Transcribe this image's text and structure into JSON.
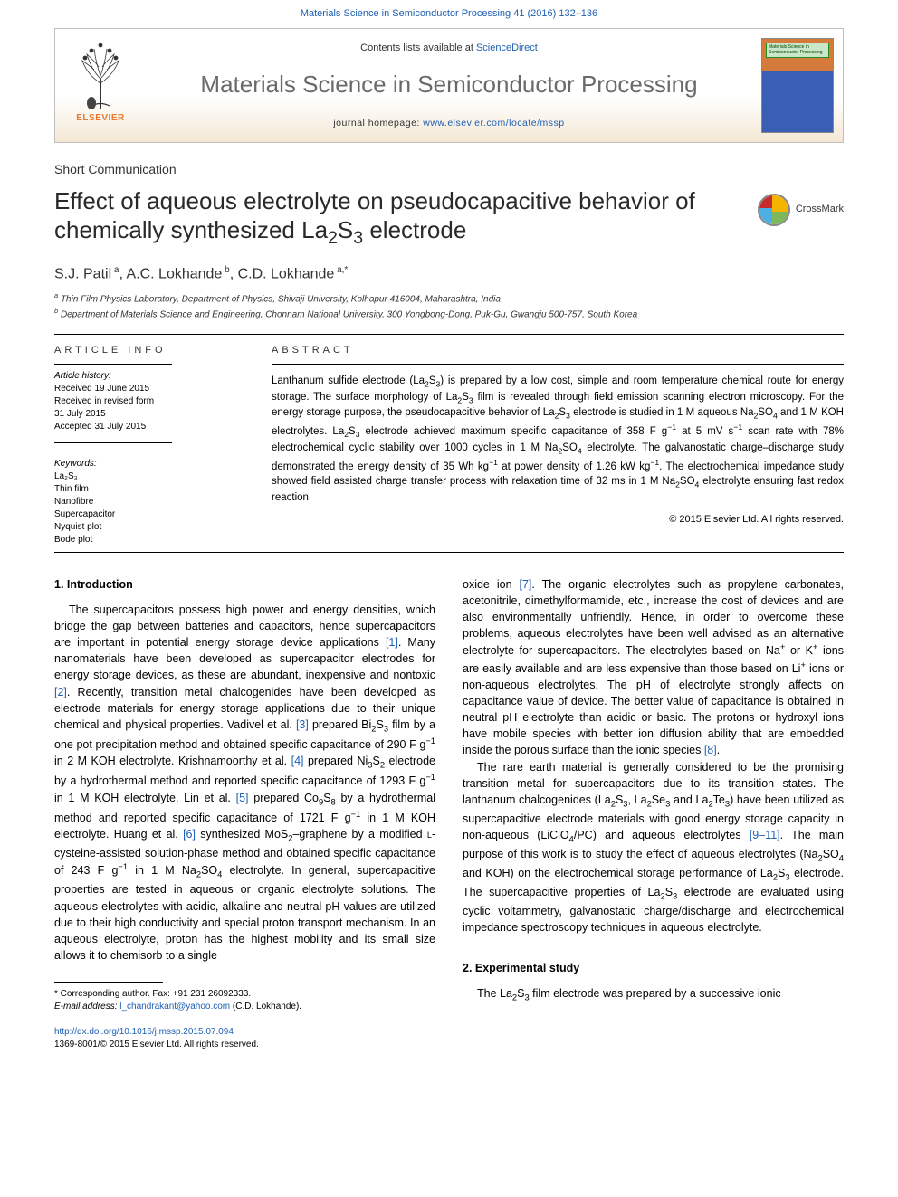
{
  "colors": {
    "link": "#1e5fb3",
    "elsevier_orange": "#e47a2e",
    "journal_gray": "#6a6a6a",
    "text": "#000000",
    "cover_orange": "#d47a3a",
    "cover_blue": "#3a5eb3",
    "cover_title_bg": "#c9e6c9"
  },
  "typography": {
    "body_family": "Arial, sans-serif",
    "title_fontsize": 26,
    "journal_fontsize": 26,
    "body_fontsize": 12.5,
    "abstract_fontsize": 11.5,
    "info_fontsize": 10
  },
  "header": {
    "top_citation": "Materials Science in Semiconductor Processing 41 (2016) 132–136",
    "contents_prefix": "Contents lists available at ",
    "contents_link": "ScienceDirect",
    "journal_name": "Materials Science in Semiconductor Processing",
    "homepage_prefix": "journal homepage: ",
    "homepage_link": "www.elsevier.com/locate/mssp",
    "publisher_logo_text": "ELSEVIER",
    "cover_title": "Materials Science in Semiconductor Processing",
    "crossmark_label": "CrossMark"
  },
  "article": {
    "section_type": "Short Communication",
    "title_html": "Effect of aqueous electrolyte on pseudocapacitive behavior of chemically synthesized La<sub>2</sub>S<sub>3</sub> electrode",
    "authors_html": "S.J. Patil<sup> a</sup>, A.C. Lokhande<sup> b</sup>, C.D. Lokhande<sup> a,*</sup>",
    "affiliations": [
      "Thin Film Physics Laboratory, Department of Physics, Shivaji University, Kolhapur 416004, Maharashtra, India",
      "Department of Materials Science and Engineering, Chonnam National University, 300 Yongbong-Dong, Puk-Gu, Gwangju 500-757, South Korea"
    ],
    "affiliation_markers": [
      "a",
      "b"
    ]
  },
  "article_info": {
    "heading": "article info",
    "history_label": "Article history:",
    "history": [
      "Received 19 June 2015",
      "Received in revised form",
      "31 July 2015",
      "Accepted 31 July 2015"
    ],
    "keywords_label": "Keywords:",
    "keywords": [
      "La₂S₃",
      "Thin film",
      "Nanofibre",
      "Supercapacitor",
      "Nyquist plot",
      "Bode plot"
    ]
  },
  "abstract": {
    "heading": "abstract",
    "text_html": "Lanthanum sulfide electrode (La<sub>2</sub>S<sub>3</sub>) is prepared by a low cost, simple and room temperature chemical route for energy storage. The surface morphology of La<sub>2</sub>S<sub>3</sub> film is revealed through field emission scanning electron microscopy. For the energy storage purpose, the pseudocapacitive behavior of La<sub>2</sub>S<sub>3</sub> electrode is studied in 1 M aqueous Na<sub>2</sub>SO<sub>4</sub> and 1 M KOH electrolytes. La<sub>2</sub>S<sub>3</sub> electrode achieved maximum specific capacitance of 358 F g<sup>−1</sup> at 5 mV s<sup>−1</sup> scan rate with 78% electrochemical cyclic stability over 1000 cycles in 1 M Na<sub>2</sub>SO<sub>4</sub> electrolyte. The galvanostatic charge–discharge study demonstrated the energy density of 35 Wh kg<sup>−1</sup> at power density of 1.26 kW kg<sup>−1</sup>. The electrochemical impedance study showed field assisted charge transfer process with relaxation time of 32 ms in 1 M Na<sub>2</sub>SO<sub>4</sub> electrolyte ensuring fast redox reaction.",
    "copyright": "© 2015 Elsevier Ltd. All rights reserved."
  },
  "body": {
    "intro_heading": "1.  Introduction",
    "experimental_heading": "2. Experimental study",
    "left_paragraph_html": "The supercapacitors possess high power and energy densities, which bridge the gap between batteries and capacitors, hence supercapacitors are important in potential energy storage device applications <span class=\"ref-link\">[1]</span>. Many nanomaterials have been developed as supercapacitor electrodes for energy storage devices, as these are abundant, inexpensive and nontoxic <span class=\"ref-link\">[2]</span>. Recently, transition metal chalcogenides have been developed as electrode materials for energy storage applications due to their unique chemical and physical properties. Vadivel et al. <span class=\"ref-link\">[3]</span> prepared Bi<sub>2</sub>S<sub>3</sub> film by a one pot precipitation method and obtained specific capacitance of 290 F g<sup>−1</sup> in 2 M KOH electrolyte. Krishnamoorthy et al. <span class=\"ref-link\">[4]</span> prepared Ni<sub>3</sub>S<sub>2</sub> electrode by a hydrothermal method and reported specific capacitance of 1293 F g<sup>−1</sup> in 1 M KOH electrolyte. Lin et al. <span class=\"ref-link\">[5]</span> prepared Co<sub>9</sub>S<sub>8</sub> by a hydrothermal method and reported specific capacitance of 1721 F g<sup>−1</sup> in 1 M KOH electrolyte. Huang et al. <span class=\"ref-link\">[6]</span> synthesized MoS<sub>2</sub>–graphene by a modified <span style=\"font-variant:small-caps\">l</span>-cysteine-assisted solution-phase method and obtained specific capacitance of 243 F g<sup>−1</sup> in 1 M Na<sub>2</sub>SO<sub>4</sub> electrolyte. In general, supercapacitive properties are tested in aqueous or organic electrolyte solutions. The aqueous electrolytes with acidic, alkaline and neutral pH values are utilized due to their high conductivity and special proton transport mechanism. In an aqueous electrolyte, proton has the highest mobility and its small size allows it to chemisorb to a single",
    "right_p1_html": "oxide ion <span class=\"ref-link\">[7]</span>. The organic electrolytes such as propylene carbonates, acetonitrile, dimethylformamide, etc., increase the cost of devices and are also environmentally unfriendly. Hence, in order to overcome these problems, aqueous electrolytes have been well advised as an alternative electrolyte for supercapacitors. The electrolytes based on Na<sup>+</sup> or K<sup>+</sup> ions are easily available and are less expensive than those based on Li<sup>+</sup> ions or non-aqueous electrolytes. The pH of electrolyte strongly affects on capacitance value of device. The better value of capacitance is obtained in neutral pH electrolyte than acidic or basic. The protons or hydroxyl ions have mobile species with better ion diffusion ability that are embedded inside the porous surface than the ionic species <span class=\"ref-link\">[8]</span>.",
    "right_p2_html": "The rare earth material is generally considered to be the promising transition metal for supercapacitors due to its transition states. The lanthanum chalcogenides (La<sub>2</sub>S<sub>3</sub>, La<sub>2</sub>Se<sub>3</sub> and La<sub>2</sub>Te<sub>3</sub>) have been utilized as supercapacitive electrode materials with good energy storage capacity in non-aqueous (LiClO<sub>4</sub>/PC) and aqueous electrolytes <span class=\"ref-link\">[9–11]</span>. The main purpose of this work is to study the effect of aqueous electrolytes (Na<sub>2</sub>SO<sub>4</sub> and KOH) on the electrochemical storage performance of La<sub>2</sub>S<sub>3</sub> electrode. The supercapacitive properties of La<sub>2</sub>S<sub>3</sub> electrode are evaluated using cyclic voltammetry, galvanostatic charge/discharge and electrochemical impedance spectroscopy techniques in aqueous electrolyte.",
    "right_p3_html": "The La<sub>2</sub>S<sub>3</sub> film electrode was prepared by a successive ionic"
  },
  "footnote": {
    "corr_line": "* Corresponding author. Fax: +91 231 26092333.",
    "email_label": "E-mail address: ",
    "email": "l_chandrakant@yahoo.com",
    "email_suffix": " (C.D. Lokhande)."
  },
  "bottom": {
    "doi": "http://dx.doi.org/10.1016/j.mssp.2015.07.094",
    "issn_line": "1369-8001/© 2015 Elsevier Ltd. All rights reserved."
  }
}
